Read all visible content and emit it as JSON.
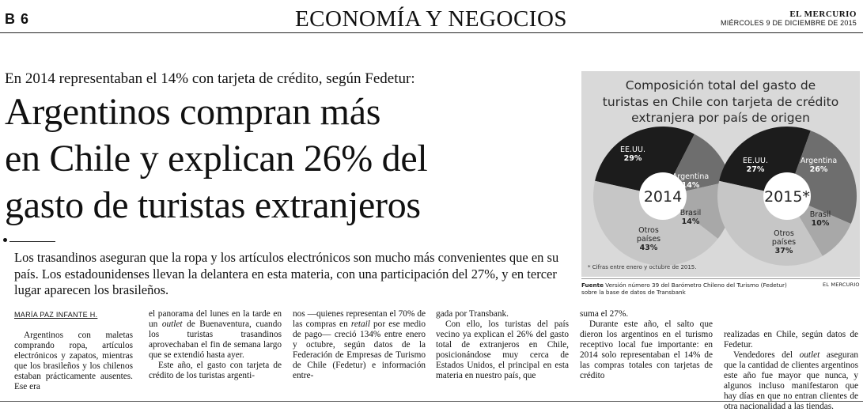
{
  "header": {
    "page_number": "B 6",
    "section": "ECONOMÍA Y NEGOCIOS",
    "paper": "EL MERCURIO",
    "date": "MIÉRCOLES 9 DE DICIEMBRE DE 2015"
  },
  "article": {
    "kicker": "En 2014 representaban el 14% con tarjeta de crédito, según Fedetur:",
    "headline": [
      "Argentinos compran más",
      "en Chile y explican 26% del",
      "gasto de turistas extranjeros"
    ],
    "summary": "Los trasandinos aseguran que la ropa y los artículos electrónicos son mucho más convenientes que en su país. Los estadounidenses llevan la delantera en esta materia, con una participación del 27%, y en tercer lugar aparecen los brasileños.",
    "byline": "MARÍA PAZ INFANTE H.",
    "col1_p1": "Argentinos con maletas comprando ropa, artículos electrónicos y zapatos, mientras que los brasileños y los chilenos estaban prácticamente ausentes. Ese era",
    "col2_p1": "el panorama del lunes en la tarde en un outlet de Buenaventura, cuando los turistas trasandinos aprovechaban el fin de semana largo que se extendió hasta ayer.",
    "col2_p2": "Este año, el gasto con tarjeta de crédito de los turistas argenti-",
    "col3_p1": "nos —quienes representan el 70% de las compras en retail por ese medio de pago— creció 134% entre enero y octubre, según datos de la Federación de Empresas de Turismo de Chile (Fedetur) e información entre-",
    "col4_p1": "gada por Transbank.",
    "col4_p2": "Con ello, los turistas del país vecino ya explican el 26% del gasto total de extranjeros en Chile, posicionándose muy cerca de Estados Unidos, el principal en esta materia en nuestro país, que",
    "col5_p1": "suma el 27%.",
    "col5_p2": "Durante este año, el salto que dieron los argentinos en el turismo receptivo local fue importante: en 2014 solo representaban el 14% de las compras totales con tarjetas de crédito",
    "col6_p1": "realizadas en Chile, según datos de Fedetur.",
    "col6_p2": "Vendedores del outlet aseguran que la cantidad de clientes argentinos este año fue mayor que nunca, y algunos incluso manifestaron que hay días en que no entran clientes de otra nacionalidad a las tiendas."
  },
  "graphic": {
    "title": [
      "Composición total del gasto de",
      "turistas en Chile con tarjeta de crédito",
      "extranjera por país de origen"
    ],
    "footnote": "* Cifras entre enero y octubre de 2015.",
    "source_label": "Fuente",
    "source_text": "Versión número 39 del Barómetro Chileno del Turismo (Fedetur) sobre la base de datos de Transbank",
    "credit": "EL MERCURIO"
  },
  "chart_data": [
    {
      "type": "pie",
      "title": "2014",
      "labels": [
        "EE.UU.",
        "Argentina",
        "Brasil",
        "Otros países"
      ],
      "values": [
        29,
        14,
        14,
        43
      ],
      "colors": [
        "#1c1c1c",
        "#6e6e6e",
        "#a8a8a8",
        "#c6c6c6"
      ],
      "value_labels": [
        "29%",
        "14%",
        "14%",
        "43%"
      ]
    },
    {
      "type": "pie",
      "title": "2015*",
      "labels": [
        "EE.UU.",
        "Argentina",
        "Brasil",
        "Otros países"
      ],
      "values": [
        27,
        26,
        10,
        37
      ],
      "colors": [
        "#1c1c1c",
        "#6e6e6e",
        "#a8a8a8",
        "#c6c6c6"
      ],
      "value_labels": [
        "27%",
        "26%",
        "10%",
        "37%"
      ]
    }
  ]
}
